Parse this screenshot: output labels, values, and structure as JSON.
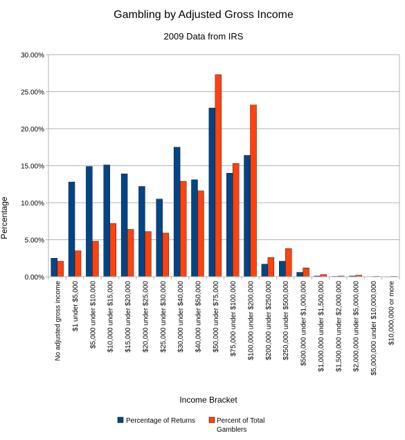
{
  "chart_data": {
    "type": "bar",
    "title": "Gambling by Adjusted Gross Income",
    "subtitle": "2009 Data from IRS",
    "xlabel": "Income Bracket",
    "ylabel": "Percentage",
    "ylim": [
      0,
      30
    ],
    "y_ticks": [
      "0.00%",
      "5.00%",
      "10.00%",
      "15.00%",
      "20.00%",
      "25.00%",
      "30.00%"
    ],
    "grid": true,
    "legend_position": "bottom",
    "categories": [
      "No adjusted gross income",
      "$1 under $5,000",
      "$5,000 under $10,000",
      "$10,000 under $15,000",
      "$15,000 under $20,000",
      "$20,000 under $25,000",
      "$25,000 under $30,000",
      "$30,000 under $40,000",
      "$40,000 under $50,000",
      "$50,000 under $75,000",
      "$75,000 under $100,000",
      "$100,000 under $200,000",
      "$200,000 under $250,000",
      "$250,000 under $500,000",
      "$500,000 under $1,000,000",
      "$1,000,000 under $1,500,000",
      "$1,500,000 under $2,000,000",
      "$2,000,000 under $5,000,000",
      "$5,000,000 under $10,000,000",
      "$10,000,000 or more"
    ],
    "series": [
      {
        "name": "Percentage of Returns",
        "color": "#004586",
        "values": [
          2.5,
          12.8,
          14.9,
          15.1,
          13.9,
          12.2,
          10.5,
          17.5,
          13.1,
          22.8,
          14.0,
          16.4,
          1.7,
          2.1,
          0.6,
          0.1,
          0.05,
          0.1,
          0.03,
          0.02
        ]
      },
      {
        "name": "Percent of Total Gamblers",
        "color": "#ff420e",
        "values": [
          2.1,
          3.5,
          4.8,
          7.2,
          6.4,
          6.1,
          5.9,
          12.9,
          11.6,
          27.3,
          15.3,
          23.2,
          2.6,
          3.8,
          1.2,
          0.3,
          0.1,
          0.2,
          0.05,
          0.05
        ]
      }
    ]
  }
}
